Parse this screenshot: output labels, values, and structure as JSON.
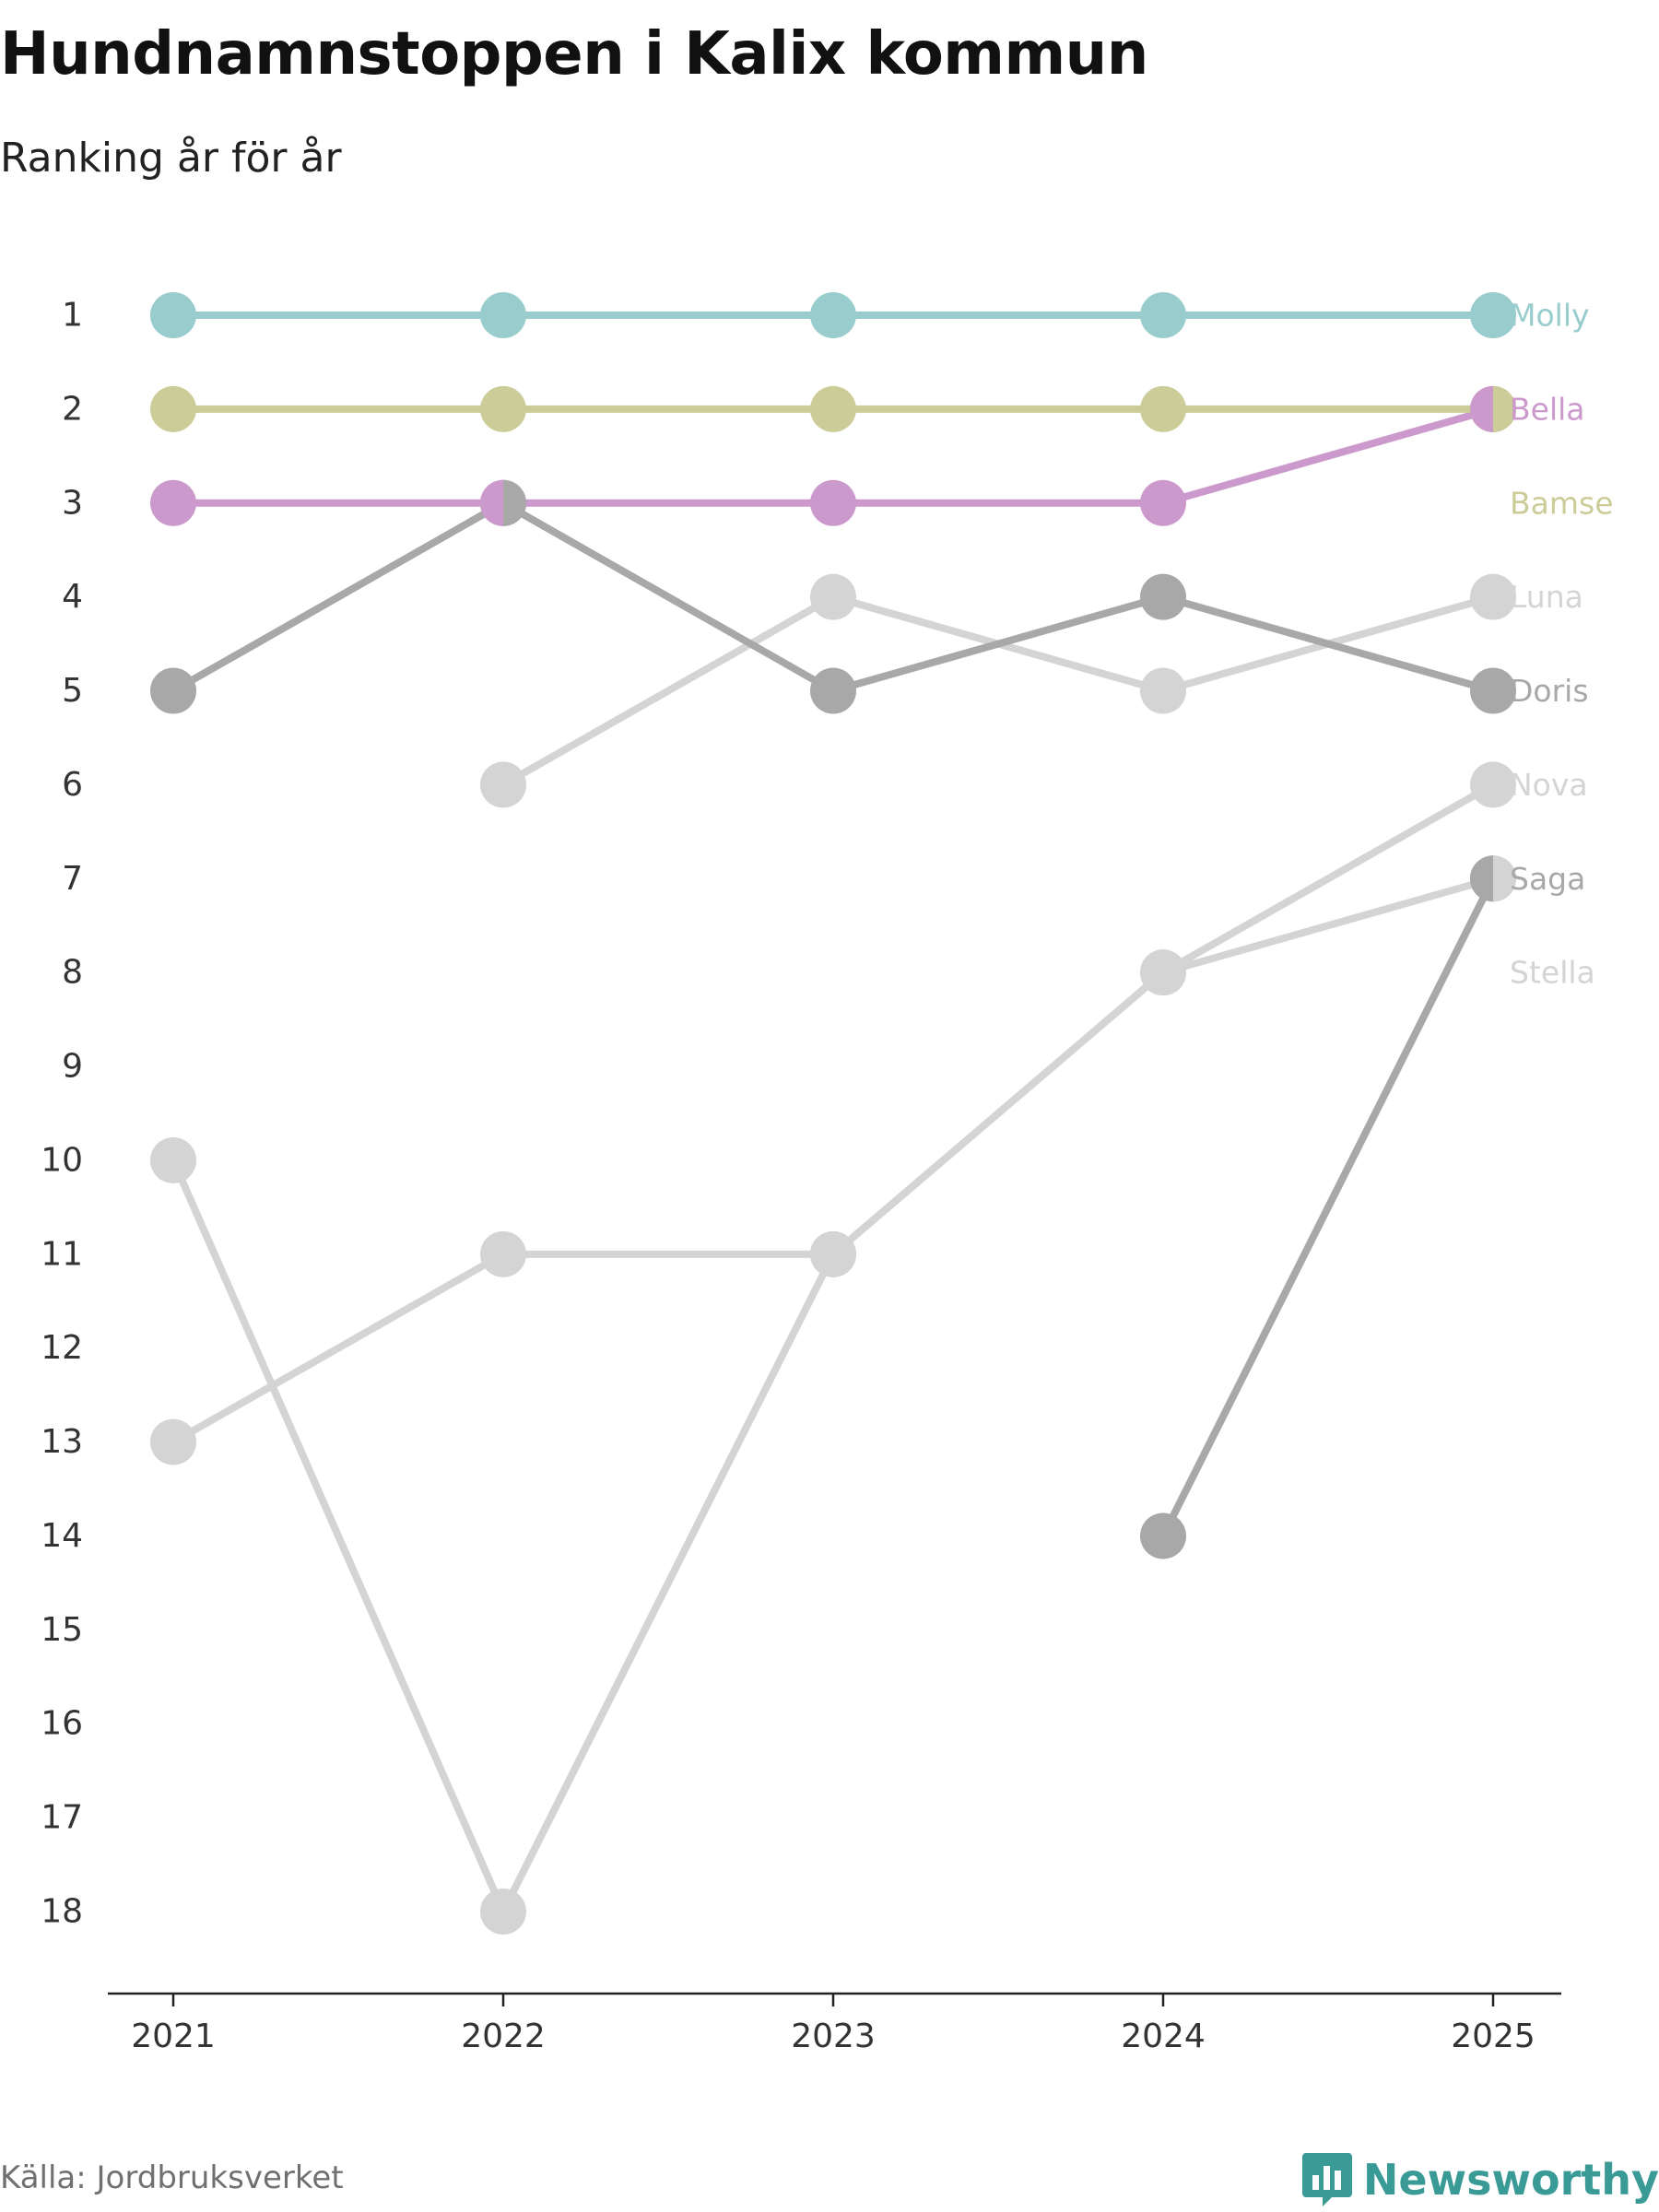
{
  "title": "Hundnamnstoppen i Kalix kommun",
  "subtitle": "Ranking år för år",
  "source": "Källa: Jordbruksverket",
  "brand": {
    "name": "Newsworthy",
    "icon": "newsworthy-logo-icon",
    "color": "#3a9a96"
  },
  "chart_data": {
    "type": "line",
    "chart_subtype": "bump",
    "title": "Hundnamnstoppen i Kalix kommun",
    "subtitle": "Ranking år för år",
    "x": [
      "2021",
      "2022",
      "2023",
      "2024",
      "2025"
    ],
    "y_ticks": [
      "1",
      "2",
      "3",
      "4",
      "5",
      "6",
      "7",
      "8",
      "9",
      "10",
      "11",
      "12",
      "13",
      "14",
      "15",
      "16",
      "17",
      "18"
    ],
    "ylim": [
      1,
      18
    ],
    "y_inverted": true,
    "grid": false,
    "series": [
      {
        "name": "Stella",
        "color": "#d4d4d4",
        "values": [
          10,
          18,
          11,
          8,
          7
        ]
      },
      {
        "name": "Nova",
        "color": "#d4d4d4",
        "values": [
          13,
          11,
          11,
          8,
          6
        ]
      },
      {
        "name": "Luna",
        "color": "#d4d4d4",
        "values": [
          null,
          6,
          4,
          5,
          4
        ]
      },
      {
        "name": "Saga",
        "color": "#a8a8a8",
        "values": [
          null,
          null,
          null,
          14,
          7
        ]
      },
      {
        "name": "Doris",
        "color": "#a8a8a8",
        "values": [
          5,
          3,
          5,
          4,
          5
        ]
      },
      {
        "name": "Bella",
        "color": "#cc99cc",
        "values": [
          3,
          3,
          3,
          3,
          2
        ]
      },
      {
        "name": "Bamse",
        "color": "#cccc99",
        "values": [
          2,
          2,
          2,
          2,
          2
        ]
      },
      {
        "name": "Molly",
        "color": "#99cccc",
        "values": [
          1,
          1,
          1,
          1,
          1
        ]
      }
    ],
    "end_labels": [
      {
        "name": "Molly",
        "rank": 1
      },
      {
        "name": "Bella",
        "rank": 2
      },
      {
        "name": "Bamse",
        "rank": 3
      },
      {
        "name": "Luna",
        "rank": 4
      },
      {
        "name": "Doris",
        "rank": 5
      },
      {
        "name": "Nova",
        "rank": 6
      },
      {
        "name": "Saga",
        "rank": 7
      },
      {
        "name": "Stella",
        "rank": 8
      }
    ],
    "split_markers": [
      {
        "x": "2022",
        "rank": 3,
        "left": "Bella",
        "right": "Doris"
      },
      {
        "x": "2025",
        "rank": 2,
        "left": "Bella",
        "right": "Bamse"
      },
      {
        "x": "2025",
        "rank": 7,
        "left": "Saga",
        "right": "Stella"
      }
    ]
  }
}
